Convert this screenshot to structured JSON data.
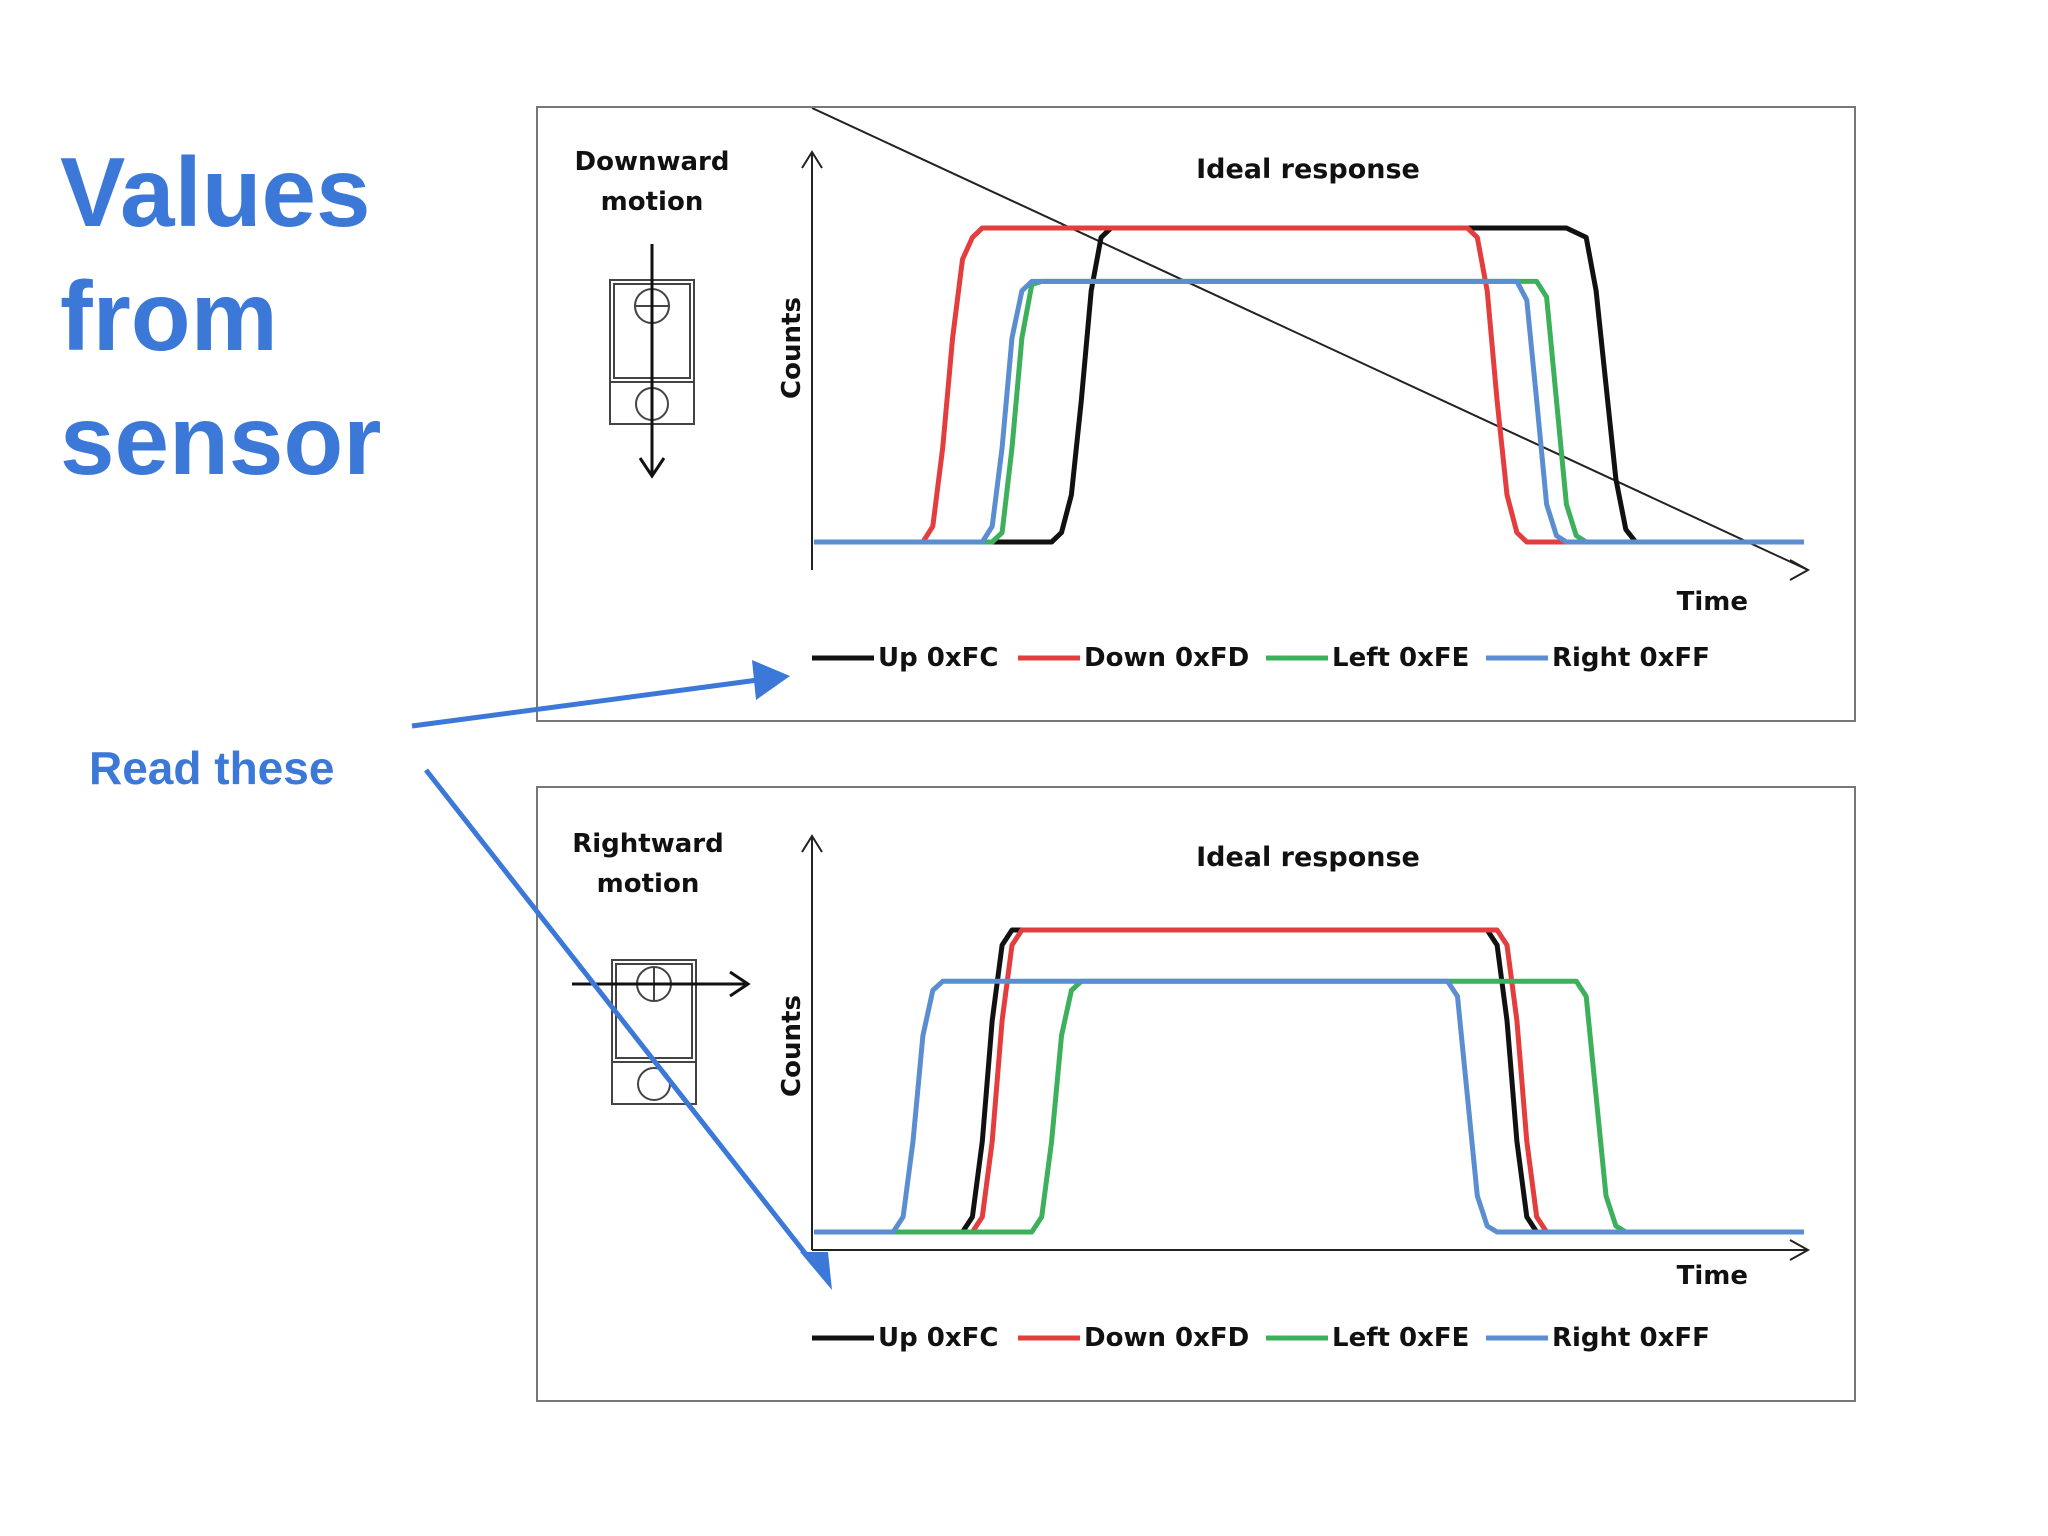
{
  "slide": {
    "title_lines": [
      "Values",
      "from",
      "sensor"
    ],
    "callout": "Read these",
    "accent_color": "#3c78d8"
  },
  "colors": {
    "up": "#111111",
    "down": "#e33d3d",
    "left": "#3cb05a",
    "right": "#5b8ed0"
  },
  "chart_data": [
    {
      "type": "line",
      "title": "Ideal response",
      "motion_label": [
        "Downward",
        "motion"
      ],
      "motion_icon": "sensor-downward-arrow-icon",
      "xlabel": "Time",
      "ylabel": "Counts",
      "xlim": [
        0,
        100
      ],
      "ylim": [
        0,
        1
      ],
      "grid": false,
      "legend_position": "bottom",
      "series": [
        {
          "name": "Up 0xFC",
          "key": "up",
          "points": [
            [
              0,
              0
            ],
            [
              24,
              0
            ],
            [
              25,
              0.03
            ],
            [
              26,
              0.15
            ],
            [
              27,
              0.45
            ],
            [
              28,
              0.8
            ],
            [
              29,
              0.97
            ],
            [
              30,
              1
            ],
            [
              76,
              1
            ],
            [
              78,
              0.97
            ],
            [
              79,
              0.8
            ],
            [
              80,
              0.5
            ],
            [
              81,
              0.2
            ],
            [
              82,
              0.04
            ],
            [
              83,
              0
            ],
            [
              100,
              0
            ]
          ]
        },
        {
          "name": "Down 0xFD",
          "key": "down",
          "points": [
            [
              0,
              0
            ],
            [
              11,
              0
            ],
            [
              12,
              0.05
            ],
            [
              13,
              0.3
            ],
            [
              14,
              0.65
            ],
            [
              15,
              0.9
            ],
            [
              16,
              0.97
            ],
            [
              17,
              1
            ],
            [
              66,
              1
            ],
            [
              67,
              0.97
            ],
            [
              68,
              0.8
            ],
            [
              69,
              0.45
            ],
            [
              70,
              0.15
            ],
            [
              71,
              0.03
            ],
            [
              72,
              0
            ],
            [
              100,
              0
            ]
          ]
        },
        {
          "name": "Left 0xFE",
          "key": "left",
          "points": [
            [
              0,
              0
            ],
            [
              18,
              0
            ],
            [
              19,
              0.03
            ],
            [
              20,
              0.3
            ],
            [
              21,
              0.65
            ],
            [
              22,
              0.82
            ],
            [
              23,
              0.83
            ],
            [
              73,
              0.83
            ],
            [
              74,
              0.78
            ],
            [
              75,
              0.45
            ],
            [
              76,
              0.12
            ],
            [
              77,
              0.02
            ],
            [
              78,
              0
            ],
            [
              100,
              0
            ]
          ]
        },
        {
          "name": "Right 0xFF",
          "key": "right",
          "points": [
            [
              0,
              0
            ],
            [
              17,
              0
            ],
            [
              18,
              0.05
            ],
            [
              19,
              0.3
            ],
            [
              20,
              0.65
            ],
            [
              21,
              0.8
            ],
            [
              22,
              0.83
            ],
            [
              71,
              0.83
            ],
            [
              72,
              0.77
            ],
            [
              73,
              0.45
            ],
            [
              74,
              0.12
            ],
            [
              75,
              0.02
            ],
            [
              76,
              0
            ],
            [
              100,
              0
            ]
          ]
        }
      ]
    },
    {
      "type": "line",
      "title": "Ideal response",
      "motion_label": [
        "Rightward",
        "motion"
      ],
      "motion_icon": "sensor-rightward-arrow-icon",
      "xlabel": "Time",
      "ylabel": "Counts",
      "xlim": [
        0,
        100
      ],
      "ylim": [
        0,
        1
      ],
      "grid": false,
      "legend_position": "bottom",
      "series": [
        {
          "name": "Up 0xFC",
          "key": "up",
          "points": [
            [
              0,
              0
            ],
            [
              15,
              0
            ],
            [
              16,
              0.05
            ],
            [
              17,
              0.3
            ],
            [
              18,
              0.7
            ],
            [
              19,
              0.95
            ],
            [
              20,
              1
            ],
            [
              68,
              1
            ],
            [
              69,
              0.95
            ],
            [
              70,
              0.7
            ],
            [
              71,
              0.3
            ],
            [
              72,
              0.05
            ],
            [
              73,
              0
            ],
            [
              100,
              0
            ]
          ]
        },
        {
          "name": "Down 0xFD",
          "key": "down",
          "points": [
            [
              0,
              0
            ],
            [
              16,
              0
            ],
            [
              17,
              0.05
            ],
            [
              18,
              0.3
            ],
            [
              19,
              0.7
            ],
            [
              20,
              0.95
            ],
            [
              21,
              1
            ],
            [
              69,
              1
            ],
            [
              70,
              0.95
            ],
            [
              71,
              0.7
            ],
            [
              72,
              0.3
            ],
            [
              73,
              0.05
            ],
            [
              74,
              0
            ],
            [
              100,
              0
            ]
          ]
        },
        {
          "name": "Left 0xFE",
          "key": "left",
          "points": [
            [
              0,
              0
            ],
            [
              22,
              0
            ],
            [
              23,
              0.05
            ],
            [
              24,
              0.3
            ],
            [
              25,
              0.65
            ],
            [
              26,
              0.8
            ],
            [
              27,
              0.83
            ],
            [
              77,
              0.83
            ],
            [
              78,
              0.78
            ],
            [
              79,
              0.45
            ],
            [
              80,
              0.12
            ],
            [
              81,
              0.02
            ],
            [
              82,
              0
            ],
            [
              100,
              0
            ]
          ]
        },
        {
          "name": "Right 0xFF",
          "key": "right",
          "points": [
            [
              0,
              0
            ],
            [
              8,
              0
            ],
            [
              9,
              0.05
            ],
            [
              10,
              0.3
            ],
            [
              11,
              0.65
            ],
            [
              12,
              0.8
            ],
            [
              13,
              0.83
            ],
            [
              64,
              0.83
            ],
            [
              65,
              0.78
            ],
            [
              66,
              0.45
            ],
            [
              67,
              0.12
            ],
            [
              68,
              0.02
            ],
            [
              69,
              0
            ],
            [
              100,
              0
            ]
          ]
        }
      ]
    }
  ]
}
